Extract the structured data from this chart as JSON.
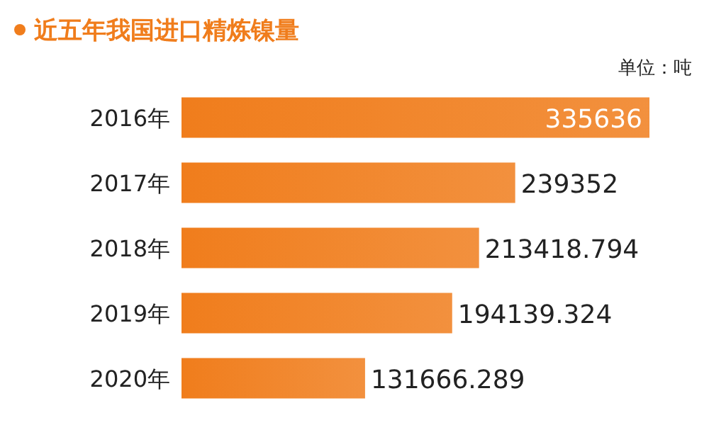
{
  "chart_data": {
    "type": "bar",
    "orientation": "horizontal",
    "title": "近五年我国进口精炼镍量",
    "annotations": [
      "单位：吨"
    ],
    "categories": [
      "2016年",
      "2017年",
      "2018年",
      "2019年",
      "2020年"
    ],
    "values": [
      335636,
      239352,
      213418.794,
      194139.324,
      131666.289
    ],
    "color": "#f07d1c",
    "data_labels": true
  }
}
